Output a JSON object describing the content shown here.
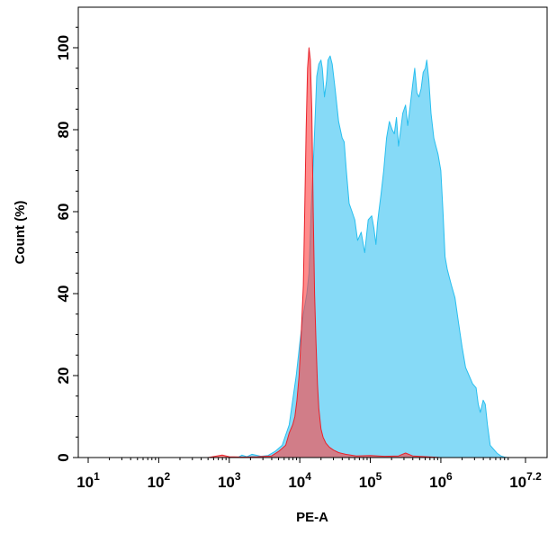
{
  "chart_data": {
    "type": "area",
    "title": "",
    "xlabel": "PE-A",
    "ylabel": "Count  (%)",
    "x_scale": "log10",
    "xlim": [
      1,
      7.2
    ],
    "ylim": [
      0,
      108
    ],
    "x_ticks": [
      {
        "value": 1,
        "base": "10",
        "exp": "1"
      },
      {
        "value": 2,
        "base": "10",
        "exp": "2"
      },
      {
        "value": 3,
        "base": "10",
        "exp": "3"
      },
      {
        "value": 4,
        "base": "10",
        "exp": "4"
      },
      {
        "value": 5,
        "base": "10",
        "exp": "5"
      },
      {
        "value": 6,
        "base": "10",
        "exp": "6"
      },
      {
        "value": 7.2,
        "base": "10",
        "exp": "7.2"
      }
    ],
    "y_ticks": [
      "0",
      "20",
      "40",
      "60",
      "80",
      "100"
    ],
    "grid": false,
    "series": [
      {
        "color": "#29BFEF",
        "fill": "#79D6F6",
        "log_x": [
          3.12,
          3.18,
          3.25,
          3.32,
          3.45,
          3.55,
          3.65,
          3.75,
          3.85,
          3.95,
          4.0,
          4.05,
          4.1,
          4.13,
          4.16,
          4.2,
          4.24,
          4.27,
          4.3,
          4.32,
          4.35,
          4.38,
          4.4,
          4.43,
          4.46,
          4.5,
          4.55,
          4.6,
          4.63,
          4.66,
          4.7,
          4.74,
          4.78,
          4.82,
          4.87,
          4.92,
          4.97,
          5.02,
          5.05,
          5.08,
          5.1,
          5.12,
          5.15,
          5.19,
          5.23,
          5.27,
          5.31,
          5.34,
          5.37,
          5.4,
          5.43,
          5.46,
          5.5,
          5.53,
          5.56,
          5.6,
          5.63,
          5.66,
          5.69,
          5.72,
          5.75,
          5.78,
          5.8,
          5.83,
          5.86,
          5.9,
          5.93,
          5.96,
          6.0,
          6.03,
          6.06,
          6.09,
          6.12,
          6.15,
          6.2,
          6.25,
          6.3,
          6.35,
          6.4,
          6.45,
          6.5,
          6.53,
          6.56,
          6.6,
          6.63,
          6.66,
          6.7,
          6.75,
          6.8,
          6.85,
          6.9,
          6.95
        ],
        "y": [
          0,
          0.6,
          0.2,
          0.8,
          0.3,
          0.5,
          1.5,
          3,
          8,
          20,
          28,
          35,
          40,
          45,
          60,
          75,
          93,
          96,
          97,
          95,
          88,
          92,
          97,
          98,
          96,
          90,
          82,
          78,
          77,
          70,
          62,
          60,
          58,
          53,
          55,
          50,
          58,
          59,
          56,
          52,
          57,
          60,
          64,
          70,
          78,
          82,
          80,
          79,
          83,
          76,
          80,
          84,
          86,
          81,
          85,
          91,
          95,
          89,
          88,
          90,
          94,
          95,
          97,
          92,
          84,
          78,
          76,
          74,
          70,
          60,
          49,
          46,
          44,
          42,
          39,
          33,
          27,
          22,
          20,
          18,
          17,
          13,
          11,
          14,
          13,
          8,
          3,
          2,
          1,
          0.4,
          0.1,
          0
        ]
      },
      {
        "color": "#E8222B",
        "fill": "#FF4444",
        "log_x": [
          2.7,
          2.8,
          2.9,
          3.0,
          3.2,
          3.4,
          3.6,
          3.7,
          3.8,
          3.85,
          3.9,
          3.93,
          3.96,
          3.99,
          4.02,
          4.05,
          4.07,
          4.09,
          4.11,
          4.13,
          4.15,
          4.17,
          4.19,
          4.21,
          4.23,
          4.25,
          4.27,
          4.3,
          4.33,
          4.37,
          4.42,
          4.48,
          4.55,
          4.65,
          4.8,
          5.0,
          5.2,
          5.4,
          5.5,
          5.6,
          5.8,
          6.0
        ],
        "y": [
          0,
          0.3,
          0.6,
          0.2,
          0.1,
          0.2,
          0.4,
          1.5,
          3,
          6,
          8,
          10,
          14,
          20,
          30,
          42,
          60,
          80,
          95,
          100,
          97,
          85,
          60,
          40,
          28,
          18,
          12,
          7,
          5,
          3.5,
          2.5,
          1.8,
          1.2,
          0.8,
          0.4,
          0.5,
          0.3,
          0.4,
          1.1,
          0.4,
          0.2,
          0
        ]
      }
    ]
  }
}
